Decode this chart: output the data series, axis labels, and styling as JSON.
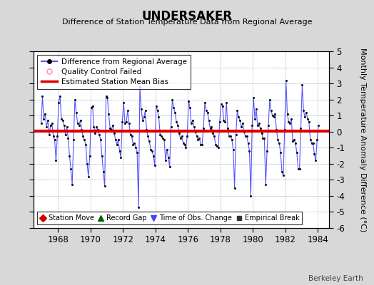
{
  "title": "UNDERSAKER",
  "subtitle": "Difference of Station Temperature Data from Regional Average",
  "ylabel": "Monthly Temperature Anomaly Difference (°C)",
  "ylim": [
    -6,
    5
  ],
  "yticks": [
    -6,
    -5,
    -4,
    -3,
    -2,
    -1,
    0,
    1,
    2,
    3,
    4,
    5
  ],
  "xlim": [
    1966.5,
    1984.7
  ],
  "xticks": [
    1968,
    1970,
    1972,
    1974,
    1976,
    1978,
    1980,
    1982,
    1984
  ],
  "bias": 0.05,
  "line_color": "#5555ff",
  "bias_color": "#dd0000",
  "dot_color": "#111111",
  "bg_color": "#d8d8d8",
  "plot_bg_color": "#ffffff",
  "grid_color": "#aaaacc",
  "legend1_items": [
    {
      "label": "Difference from Regional Average"
    },
    {
      "label": "Quality Control Failed"
    },
    {
      "label": "Estimated Station Mean Bias"
    }
  ],
  "legend2_items": [
    {
      "label": "Station Move"
    },
    {
      "label": "Record Gap"
    },
    {
      "label": "Time of Obs. Change"
    },
    {
      "label": "Empirical Break"
    }
  ],
  "watermark": "Berkeley Earth",
  "data_x": [
    1966.958,
    1967.042,
    1967.125,
    1967.208,
    1967.292,
    1967.375,
    1967.458,
    1967.542,
    1967.625,
    1967.708,
    1967.792,
    1967.875,
    1967.958,
    1968.042,
    1968.125,
    1968.208,
    1968.292,
    1968.375,
    1968.458,
    1968.542,
    1968.625,
    1968.708,
    1968.792,
    1968.875,
    1968.958,
    1969.042,
    1969.125,
    1969.208,
    1969.292,
    1969.375,
    1969.458,
    1969.542,
    1969.625,
    1969.708,
    1969.792,
    1969.875,
    1969.958,
    1970.042,
    1970.125,
    1970.208,
    1970.292,
    1970.375,
    1970.458,
    1970.542,
    1970.625,
    1970.708,
    1970.792,
    1970.875,
    1970.958,
    1971.042,
    1971.125,
    1971.208,
    1971.292,
    1971.375,
    1971.458,
    1971.542,
    1971.625,
    1971.708,
    1971.792,
    1971.875,
    1971.958,
    1972.042,
    1972.125,
    1972.208,
    1972.292,
    1972.375,
    1972.458,
    1972.542,
    1972.625,
    1972.708,
    1972.792,
    1972.875,
    1972.958,
    1973.042,
    1973.125,
    1973.208,
    1973.292,
    1973.375,
    1973.458,
    1973.542,
    1973.625,
    1973.708,
    1973.792,
    1973.875,
    1973.958,
    1974.042,
    1974.125,
    1974.208,
    1974.292,
    1974.375,
    1974.458,
    1974.542,
    1974.625,
    1974.708,
    1974.792,
    1974.875,
    1974.958,
    1975.042,
    1975.125,
    1975.208,
    1975.292,
    1975.375,
    1975.458,
    1975.542,
    1975.625,
    1975.708,
    1975.792,
    1975.875,
    1975.958,
    1976.042,
    1976.125,
    1976.208,
    1976.292,
    1976.375,
    1976.458,
    1976.542,
    1976.625,
    1976.708,
    1976.792,
    1976.875,
    1976.958,
    1977.042,
    1977.125,
    1977.208,
    1977.292,
    1977.375,
    1977.458,
    1977.542,
    1977.625,
    1977.708,
    1977.792,
    1977.875,
    1977.958,
    1978.042,
    1978.125,
    1978.208,
    1978.292,
    1978.375,
    1978.458,
    1978.542,
    1978.625,
    1978.708,
    1978.792,
    1978.875,
    1978.958,
    1979.042,
    1979.125,
    1979.208,
    1979.292,
    1979.375,
    1979.458,
    1979.542,
    1979.625,
    1979.708,
    1979.792,
    1979.875,
    1979.958,
    1980.042,
    1980.125,
    1980.208,
    1980.292,
    1980.375,
    1980.458,
    1980.542,
    1980.625,
    1980.708,
    1980.792,
    1980.875,
    1980.958,
    1981.042,
    1981.125,
    1981.208,
    1981.292,
    1981.375,
    1981.458,
    1981.542,
    1981.625,
    1981.708,
    1981.792,
    1981.875,
    1981.958,
    1982.042,
    1982.125,
    1982.208,
    1982.292,
    1982.375,
    1982.458,
    1982.542,
    1982.625,
    1982.708,
    1982.792,
    1982.875,
    1982.958,
    1983.042,
    1983.125,
    1983.208,
    1983.292,
    1983.375,
    1983.458,
    1983.542,
    1983.625,
    1983.708,
    1983.792,
    1983.875,
    1983.958,
    1984.042
  ],
  "data_y": [
    0.5,
    2.2,
    0.8,
    1.1,
    0.3,
    0.7,
    -0.2,
    0.4,
    0.5,
    -0.3,
    -0.5,
    -1.8,
    -0.3,
    1.8,
    2.2,
    0.8,
    0.7,
    0.4,
    -0.2,
    0.3,
    -0.4,
    -1.5,
    -2.3,
    -3.3,
    -0.5,
    2.0,
    1.2,
    0.5,
    0.4,
    0.7,
    0.1,
    -0.3,
    -0.5,
    -0.8,
    -2.0,
    -2.8,
    -1.5,
    1.5,
    1.6,
    0.3,
    -0.1,
    0.3,
    0.1,
    -0.2,
    -0.5,
    -1.5,
    -2.5,
    -3.4,
    2.2,
    2.1,
    1.1,
    0.2,
    0.1,
    0.4,
    -0.1,
    -0.5,
    -0.8,
    -0.5,
    -1.2,
    -1.6,
    0.6,
    1.8,
    0.5,
    0.6,
    1.3,
    0.5,
    -0.2,
    -0.3,
    -0.8,
    -0.7,
    -1.0,
    -1.3,
    -4.7,
    2.8,
    1.4,
    0.7,
    0.9,
    1.3,
    0.1,
    -0.3,
    -0.6,
    -1.1,
    -1.2,
    -1.5,
    -2.1,
    1.6,
    1.3,
    0.9,
    -0.2,
    -0.3,
    -0.4,
    -0.5,
    -1.8,
    -1.1,
    -1.6,
    -2.2,
    0.3,
    2.0,
    1.5,
    1.2,
    0.6,
    0.4,
    -0.1,
    -0.4,
    -0.3,
    -0.7,
    -0.8,
    -1.0,
    -0.3,
    1.9,
    1.5,
    0.5,
    0.7,
    0.3,
    0.0,
    -0.3,
    -0.5,
    -0.4,
    -0.8,
    -0.8,
    0.2,
    1.8,
    1.3,
    1.2,
    0.7,
    0.2,
    0.3,
    -0.1,
    -0.3,
    -0.8,
    -0.9,
    -1.0,
    0.6,
    1.7,
    1.6,
    0.7,
    0.6,
    1.8,
    0.2,
    -0.3,
    -0.3,
    -0.5,
    -1.1,
    -3.5,
    -0.2,
    1.3,
    0.9,
    0.7,
    0.3,
    0.5,
    0.0,
    -0.3,
    -0.3,
    -0.7,
    -1.2,
    -4.0,
    0.4,
    2.1,
    0.8,
    1.4,
    0.4,
    0.5,
    0.2,
    -0.1,
    -0.4,
    -0.4,
    -3.3,
    -1.2,
    0.4,
    2.0,
    1.3,
    1.0,
    0.9,
    1.1,
    0.1,
    -0.5,
    -0.7,
    -1.3,
    -2.5,
    -2.7,
    0.1,
    3.2,
    1.1,
    0.6,
    0.5,
    0.8,
    -0.6,
    -0.5,
    -0.7,
    -1.3,
    -2.3,
    -2.3,
    0.2,
    2.9,
    1.3,
    0.9,
    1.2,
    0.8,
    0.6,
    -0.5,
    -0.7,
    -0.7,
    -1.4,
    -1.8,
    -0.5,
    0.4
  ]
}
